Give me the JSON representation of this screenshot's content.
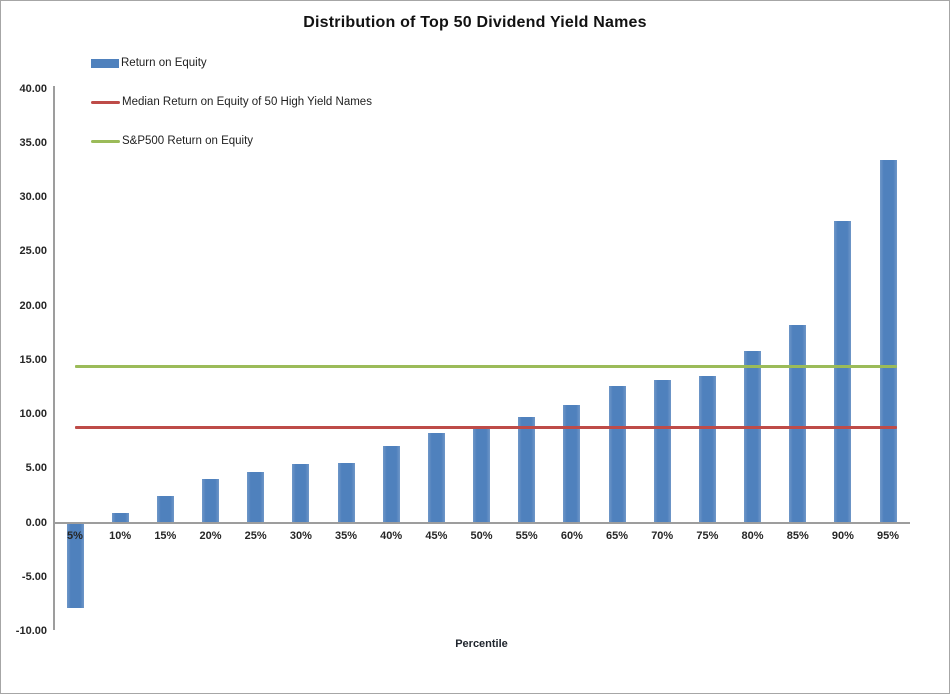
{
  "title": "Distribution of Top 50 Dividend Yield Names",
  "colors": {
    "bar": "#4f81bd",
    "bar_edge": "#6f97c8",
    "median_line": "#be4b48",
    "sp500_line": "#9bbb59",
    "axis": "#9d9d9d",
    "tick_text": "#262626",
    "frame_border": "#a6a6a6"
  },
  "legend": [
    {
      "swatch": "bar-swatch",
      "label": "Return on Equity",
      "color": "#4f81bd"
    },
    {
      "swatch": "line-swatch",
      "label": "Median Return on Equity of 50 High Yield Names",
      "color": "#be4b48"
    },
    {
      "swatch": "line-swatch",
      "label": "S&P500 Return on Equity",
      "color": "#9bbb59"
    }
  ],
  "chart_data": {
    "type": "bar",
    "title": "Distribution of Top 50 Dividend Yield Names",
    "xlabel": "Percentile",
    "ylabel": "",
    "ylim": [
      -10,
      40
    ],
    "ytick_step": 5,
    "ytick_labels": [
      "40.00",
      "35.00",
      "30.00",
      "25.00",
      "20.00",
      "15.00",
      "10.00",
      "5.00",
      "0.00",
      "-5.00",
      "-10.00"
    ],
    "grid": false,
    "legend_position": "top-left",
    "categories": [
      "5%",
      "10%",
      "15%",
      "20%",
      "25%",
      "30%",
      "35%",
      "40%",
      "45%",
      "50%",
      "55%",
      "60%",
      "65%",
      "70%",
      "75%",
      "80%",
      "85%",
      "90%",
      "95%"
    ],
    "series": [
      {
        "name": "Return on Equity",
        "type": "bar",
        "values": [
          -7.8,
          0.9,
          2.4,
          4.0,
          4.7,
          5.4,
          5.5,
          7.1,
          8.3,
          8.8,
          9.7,
          10.8,
          12.6,
          13.1,
          13.5,
          15.8,
          18.2,
          27.8,
          33.4
        ]
      },
      {
        "name": "Median Return on Equity of 50 High Yield Names",
        "type": "hline",
        "value": 8.8
      },
      {
        "name": "S&P500 Return on Equity",
        "type": "hline",
        "value": 14.4
      }
    ]
  }
}
